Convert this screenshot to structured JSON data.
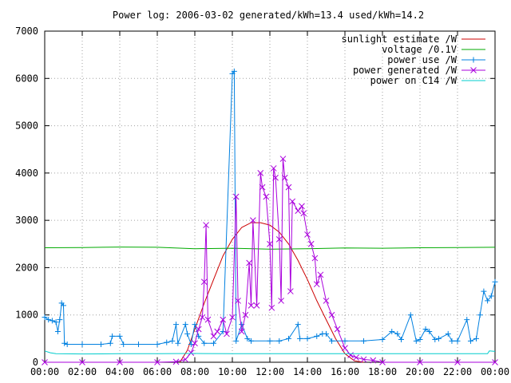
{
  "chart_data": {
    "type": "line",
    "title": "Power log: 2006-03-02 generated/kWh=13.4 used/kWh=14.2",
    "xlabel": "",
    "ylabel": "",
    "xlim": [
      0,
      24
    ],
    "ylim": [
      0,
      7000
    ],
    "grid": true,
    "legend_position": "top-right",
    "x_ticks": [
      "00:00",
      "02:00",
      "04:00",
      "06:00",
      "08:00",
      "10:00",
      "12:00",
      "14:00",
      "16:00",
      "18:00",
      "20:00",
      "22:00",
      "00:00"
    ],
    "y_ticks": [
      "0",
      "1000",
      "2000",
      "3000",
      "4000",
      "5000",
      "6000",
      "7000"
    ],
    "series": [
      {
        "name": "sunlight estimate /W",
        "color": "#cc0000",
        "marker": "none",
        "points": [
          [
            7.2,
            0
          ],
          [
            7.6,
            250
          ],
          [
            8.0,
            700
          ],
          [
            8.5,
            1250
          ],
          [
            9.0,
            1750
          ],
          [
            9.5,
            2250
          ],
          [
            10.0,
            2600
          ],
          [
            10.5,
            2850
          ],
          [
            11.0,
            2950
          ],
          [
            11.5,
            2950
          ],
          [
            12.0,
            2900
          ],
          [
            12.5,
            2750
          ],
          [
            13.0,
            2500
          ],
          [
            13.5,
            2150
          ],
          [
            14.0,
            1750
          ],
          [
            14.5,
            1300
          ],
          [
            15.0,
            900
          ],
          [
            15.5,
            500
          ],
          [
            16.0,
            180
          ],
          [
            16.5,
            30
          ],
          [
            17.0,
            0
          ]
        ]
      },
      {
        "name": "voltage /0.1V",
        "color": "#00aa00",
        "marker": "none",
        "points": [
          [
            0,
            2420
          ],
          [
            2,
            2425
          ],
          [
            4,
            2435
          ],
          [
            6,
            2430
          ],
          [
            8,
            2400
          ],
          [
            10,
            2410
          ],
          [
            12,
            2390
          ],
          [
            14,
            2400
          ],
          [
            16,
            2415
          ],
          [
            18,
            2410
          ],
          [
            20,
            2420
          ],
          [
            22,
            2425
          ],
          [
            24,
            2430
          ]
        ]
      },
      {
        "name": "power use /W",
        "color": "#0080e0",
        "marker": "plus",
        "points": [
          [
            0,
            950
          ],
          [
            0.2,
            900
          ],
          [
            0.4,
            880
          ],
          [
            0.6,
            850
          ],
          [
            0.7,
            650
          ],
          [
            0.8,
            900
          ],
          [
            0.9,
            1250
          ],
          [
            1.0,
            1200
          ],
          [
            1.05,
            400
          ],
          [
            1.2,
            380
          ],
          [
            2.0,
            380
          ],
          [
            3.0,
            380
          ],
          [
            3.5,
            400
          ],
          [
            3.6,
            550
          ],
          [
            4.0,
            550
          ],
          [
            4.2,
            380
          ],
          [
            5.0,
            380
          ],
          [
            6.0,
            380
          ],
          [
            6.5,
            420
          ],
          [
            6.8,
            450
          ],
          [
            7.0,
            800
          ],
          [
            7.1,
            400
          ],
          [
            7.5,
            800
          ],
          [
            7.6,
            600
          ],
          [
            7.8,
            380
          ],
          [
            8.0,
            800
          ],
          [
            8.2,
            550
          ],
          [
            8.5,
            400
          ],
          [
            9.0,
            400
          ],
          [
            9.5,
            650
          ],
          [
            10.0,
            6100
          ],
          [
            10.1,
            6150
          ],
          [
            10.2,
            450
          ],
          [
            10.5,
            800
          ],
          [
            10.8,
            500
          ],
          [
            11.0,
            450
          ],
          [
            12.0,
            450
          ],
          [
            12.5,
            450
          ],
          [
            13.0,
            500
          ],
          [
            13.5,
            800
          ],
          [
            13.6,
            500
          ],
          [
            14.0,
            500
          ],
          [
            14.5,
            550
          ],
          [
            14.8,
            600
          ],
          [
            15.0,
            600
          ],
          [
            15.3,
            450
          ],
          [
            16.0,
            450
          ],
          [
            17.0,
            450
          ],
          [
            18.0,
            480
          ],
          [
            18.5,
            650
          ],
          [
            18.8,
            600
          ],
          [
            19.0,
            480
          ],
          [
            19.5,
            1000
          ],
          [
            19.8,
            450
          ],
          [
            20.0,
            480
          ],
          [
            20.3,
            700
          ],
          [
            20.5,
            650
          ],
          [
            20.8,
            480
          ],
          [
            21.0,
            500
          ],
          [
            21.5,
            600
          ],
          [
            21.7,
            450
          ],
          [
            22.0,
            450
          ],
          [
            22.5,
            900
          ],
          [
            22.7,
            450
          ],
          [
            23.0,
            500
          ],
          [
            23.2,
            1000
          ],
          [
            23.4,
            1500
          ],
          [
            23.6,
            1300
          ],
          [
            23.8,
            1400
          ],
          [
            24.0,
            1700
          ]
        ]
      },
      {
        "name": "power generated /W",
        "color": "#aa00dd",
        "marker": "x",
        "points": [
          [
            0,
            0
          ],
          [
            2,
            0
          ],
          [
            4,
            0
          ],
          [
            6,
            0
          ],
          [
            7.0,
            10
          ],
          [
            7.5,
            60
          ],
          [
            7.8,
            200
          ],
          [
            8.0,
            400
          ],
          [
            8.2,
            700
          ],
          [
            8.4,
            950
          ],
          [
            8.5,
            1700
          ],
          [
            8.6,
            2900
          ],
          [
            8.7,
            900
          ],
          [
            9.0,
            550
          ],
          [
            9.2,
            650
          ],
          [
            9.5,
            900
          ],
          [
            9.7,
            600
          ],
          [
            10.0,
            950
          ],
          [
            10.2,
            3500
          ],
          [
            10.3,
            1300
          ],
          [
            10.5,
            650
          ],
          [
            10.7,
            1000
          ],
          [
            10.9,
            2100
          ],
          [
            11.0,
            1200
          ],
          [
            11.1,
            3000
          ],
          [
            11.3,
            1200
          ],
          [
            11.5,
            4000
          ],
          [
            11.6,
            3700
          ],
          [
            11.8,
            3500
          ],
          [
            12.0,
            2500
          ],
          [
            12.1,
            1150
          ],
          [
            12.2,
            4100
          ],
          [
            12.3,
            3900
          ],
          [
            12.5,
            2600
          ],
          [
            12.6,
            1300
          ],
          [
            12.7,
            4300
          ],
          [
            12.8,
            3900
          ],
          [
            13.0,
            3700
          ],
          [
            13.1,
            1500
          ],
          [
            13.2,
            3400
          ],
          [
            13.5,
            3200
          ],
          [
            13.7,
            3300
          ],
          [
            13.8,
            3150
          ],
          [
            14.0,
            2700
          ],
          [
            14.2,
            2500
          ],
          [
            14.4,
            2200
          ],
          [
            14.5,
            1650
          ],
          [
            14.7,
            1850
          ],
          [
            15.0,
            1300
          ],
          [
            15.3,
            1000
          ],
          [
            15.6,
            700
          ],
          [
            16.0,
            300
          ],
          [
            16.3,
            150
          ],
          [
            16.6,
            100
          ],
          [
            17.0,
            60
          ],
          [
            17.5,
            40
          ],
          [
            18.0,
            0
          ],
          [
            20,
            0
          ],
          [
            22,
            0
          ],
          [
            24,
            0
          ]
        ]
      },
      {
        "name": "power on C14 /W",
        "color": "#00cccc",
        "marker": "none",
        "points": [
          [
            0,
            240
          ],
          [
            0.3,
            200
          ],
          [
            0.6,
            180
          ],
          [
            2,
            175
          ],
          [
            4,
            180
          ],
          [
            6,
            180
          ],
          [
            8,
            185
          ],
          [
            10,
            180
          ],
          [
            12,
            180
          ],
          [
            14,
            180
          ],
          [
            16,
            180
          ],
          [
            18,
            180
          ],
          [
            20,
            180
          ],
          [
            22,
            180
          ],
          [
            23.6,
            180
          ],
          [
            23.7,
            240
          ],
          [
            24,
            230
          ]
        ]
      }
    ]
  }
}
